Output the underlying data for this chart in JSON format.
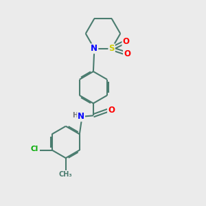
{
  "background_color": "#ebebeb",
  "bond_color": "#4a7c6f",
  "bond_width": 1.5,
  "atom_colors": {
    "N": "#0000ff",
    "O": "#ff0000",
    "S": "#cccc00",
    "Cl": "#00aa00",
    "C": "#4a7c6f",
    "H": "#777777"
  },
  "font_size": 7.5
}
